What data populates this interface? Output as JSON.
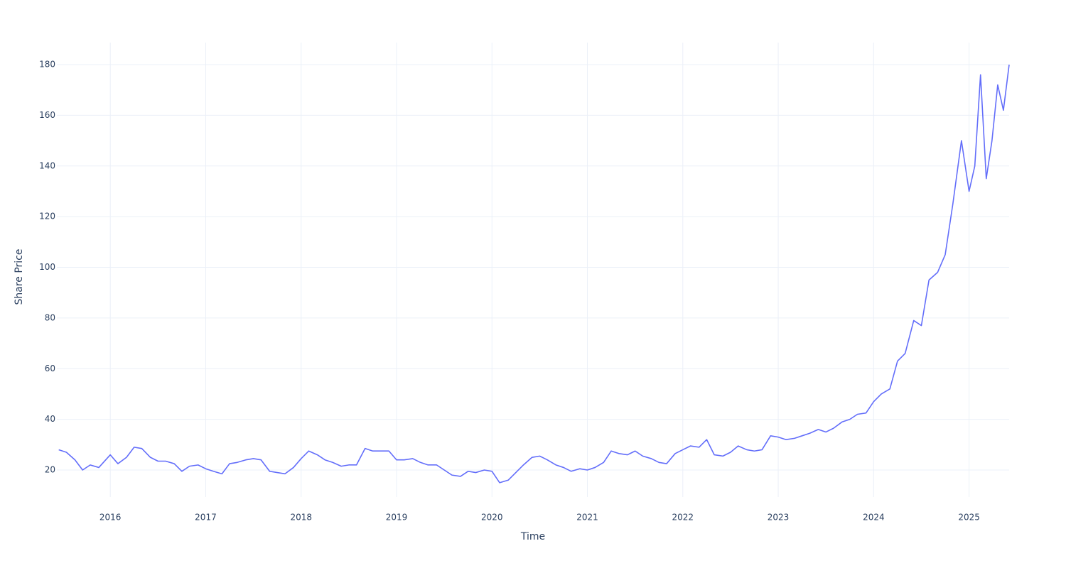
{
  "chart_data": {
    "type": "line",
    "x_label": "Time",
    "y_label": "Share Price",
    "color": "#636efa",
    "x": [
      2015.46,
      2015.54,
      2015.63,
      2015.71,
      2015.79,
      2015.88,
      2016,
      2016.08,
      2016.17,
      2016.25,
      2016.33,
      2016.42,
      2016.5,
      2016.58,
      2016.67,
      2016.75,
      2016.83,
      2016.92,
      2017,
      2017.08,
      2017.17,
      2017.25,
      2017.33,
      2017.42,
      2017.5,
      2017.58,
      2017.67,
      2017.75,
      2017.83,
      2017.92,
      2018,
      2018.08,
      2018.17,
      2018.25,
      2018.33,
      2018.42,
      2018.5,
      2018.58,
      2018.67,
      2018.75,
      2018.83,
      2018.92,
      2019,
      2019.08,
      2019.17,
      2019.25,
      2019.33,
      2019.42,
      2019.5,
      2019.58,
      2019.67,
      2019.75,
      2019.83,
      2019.92,
      2020,
      2020.08,
      2020.17,
      2020.25,
      2020.33,
      2020.42,
      2020.5,
      2020.58,
      2020.67,
      2020.75,
      2020.83,
      2020.92,
      2021,
      2021.08,
      2021.17,
      2021.25,
      2021.33,
      2021.42,
      2021.5,
      2021.58,
      2021.67,
      2021.75,
      2021.83,
      2021.92,
      2022,
      2022.08,
      2022.17,
      2022.25,
      2022.33,
      2022.42,
      2022.5,
      2022.58,
      2022.67,
      2022.75,
      2022.83,
      2022.92,
      2023,
      2023.08,
      2023.17,
      2023.25,
      2023.33,
      2023.42,
      2023.5,
      2023.58,
      2023.67,
      2023.75,
      2023.83,
      2023.92,
      2024,
      2024.08,
      2024.17,
      2024.25,
      2024.33,
      2024.42,
      2024.5,
      2024.58,
      2024.67,
      2024.75,
      2024.83,
      2024.92,
      2025,
      2025.06,
      2025.12,
      2025.18,
      2025.24,
      2025.3,
      2025.36,
      2025.42
    ],
    "values": [
      28,
      27,
      24,
      20,
      22,
      21,
      26,
      22.5,
      25,
      29,
      28.5,
      25,
      23.5,
      23.5,
      22.5,
      19.5,
      21.5,
      22,
      20.5,
      19.5,
      18.5,
      22.5,
      23,
      24,
      24.5,
      24,
      19.5,
      19,
      18.5,
      21,
      24.5,
      27.5,
      26,
      24,
      23,
      21.5,
      22,
      22,
      28.5,
      27.5,
      27.5,
      27.5,
      24,
      24,
      24.5,
      23,
      22,
      22,
      20,
      18,
      17.5,
      19.5,
      19,
      20,
      19.5,
      15,
      16,
      19,
      22,
      25,
      25.5,
      24,
      22,
      21,
      19.5,
      20.5,
      20,
      21,
      23,
      27.5,
      26.5,
      26,
      27.5,
      25.5,
      24.5,
      23,
      22.5,
      26.5,
      28,
      29.5,
      29,
      32,
      26,
      25.5,
      27,
      29.5,
      28,
      27.5,
      28,
      33.5,
      33,
      32,
      32.5,
      33.5,
      34.5,
      36,
      35,
      36.5,
      39,
      40,
      42,
      42.5,
      47,
      50,
      52,
      63,
      66,
      79,
      77,
      95,
      98,
      105,
      125,
      150,
      130,
      140,
      176,
      135,
      150,
      172,
      162,
      180
    ],
    "xlim": [
      2015.44,
      2025.42
    ],
    "xticks": [
      2016,
      2017,
      2018,
      2019,
      2020,
      2021,
      2022,
      2023,
      2024,
      2025
    ],
    "ylim": [
      9.35,
      188.7
    ],
    "yticks": [
      20,
      40,
      60,
      80,
      100,
      120,
      140,
      160,
      180
    ],
    "grid": true
  }
}
